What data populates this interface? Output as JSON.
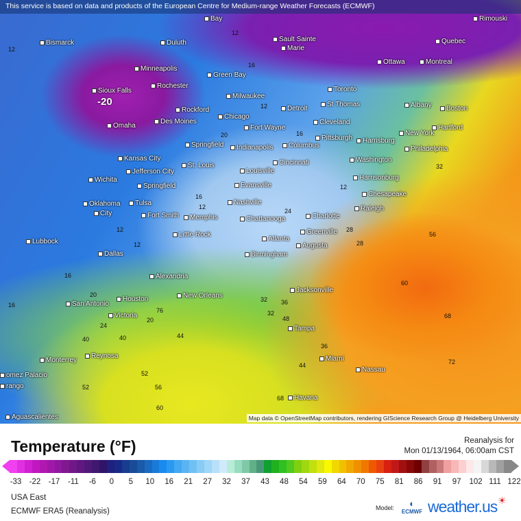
{
  "banner": "This service is based on data and products of the European Centre for Medium-range Weather Forecasts (ECMWF)",
  "map": {
    "cities": [
      "Bay",
      "Rimouski",
      "Bismarck",
      "Duluth",
      "Sault Sainte",
      "Marie",
      "Quebec",
      "Ottawa",
      "Montreal",
      "Minneapolis",
      "Rochester",
      "Green Bay",
      "Sioux Falls",
      "Milwaukee",
      "Toronto",
      "St Thomas",
      "Albany",
      "Boston",
      "Detroit",
      "Omaha",
      "Des Moines",
      "Rockford",
      "Chicago",
      "Fort Wayne",
      "Cleveland",
      "New York",
      "Hartford",
      "Springfield",
      "Indianapolis",
      "Columbus",
      "Pittsburgh",
      "Harrisburg",
      "Philadelphia",
      "Kansas City",
      "Jefferson City",
      "St. Louis",
      "Cincinnati",
      "Washington",
      "Wichita",
      "Springfield",
      "Louisville",
      "Evansville",
      "Harrisonburg",
      "Chesapeake",
      "Oklahoma",
      "City",
      "Tulsa",
      "Nashville",
      "Raleigh",
      "Fort Smith",
      "Memphis",
      "Chattanooga",
      "Charlotte",
      "Little Rock",
      "Greenville",
      "Lubbock",
      "Atlanta",
      "Augusta",
      "Dallas",
      "Birmingham",
      "Alexandria",
      "Jacksonville",
      "New Orleans",
      "Houston",
      "San Antonio",
      "Victoria",
      "Tampa",
      "Reynosa",
      "Monterrey",
      "Miami",
      "Nassau",
      "omez Palacio",
      "rango",
      "Havana",
      "Aguascalientes"
    ],
    "min_label": "-20",
    "contours": [
      "12",
      "12",
      "16",
      "12",
      "12",
      "16",
      "20",
      "16",
      "12",
      "16",
      "20",
      "24",
      "28",
      "16",
      "12",
      "20",
      "24",
      "32",
      "36",
      "40",
      "44",
      "32",
      "36",
      "48",
      "52",
      "44",
      "56",
      "60",
      "52",
      "56",
      "60",
      "68",
      "68",
      "72",
      "76",
      "32",
      "40",
      "28",
      "12"
    ],
    "attribution": "Map data © OpenStreetMap contributors, rendering GIScience Research Group @ Heidelberg University"
  },
  "legend": {
    "title": "Temperature (°F)",
    "reanalysis_label": "Reanalysis for",
    "valid_time": "Mon 01/13/1964, 06:00am CST",
    "ticks": [
      "-33",
      "-22",
      "-17",
      "-11",
      "-6",
      "0",
      "5",
      "10",
      "16",
      "21",
      "27",
      "32",
      "37",
      "43",
      "48",
      "54",
      "59",
      "64",
      "70",
      "75",
      "81",
      "86",
      "91",
      "97",
      "102",
      "111",
      "122"
    ],
    "colors": [
      "#f040f0",
      "#e030e0",
      "#d020d0",
      "#c018c0",
      "#b018b0",
      "#a018a8",
      "#9018a0",
      "#801890",
      "#701888",
      "#601880",
      "#501878",
      "#401870",
      "#301468",
      "#202080",
      "#182a88",
      "#183c90",
      "#184c98",
      "#1a5aa8",
      "#1a6ac0",
      "#1a7ad8",
      "#1a8aee",
      "#2a9af0",
      "#44a8f2",
      "#5ab4f4",
      "#70c0f4",
      "#88ccf6",
      "#a0d6f8",
      "#b8e0fa",
      "#d0eafc",
      "#b8ecd8",
      "#98dcc0",
      "#80c8a8",
      "#60b088",
      "#489878",
      "#10a030",
      "#20b020",
      "#30c020",
      "#50c820",
      "#80d010",
      "#a0d810",
      "#c0e010",
      "#e0e810",
      "#f8f800",
      "#f0d800",
      "#f0c000",
      "#f0a800",
      "#f09000",
      "#f07800",
      "#f05800",
      "#e84010",
      "#d82010",
      "#c01818",
      "#a01010",
      "#880808",
      "#700000",
      "#904040",
      "#b06060",
      "#c87878",
      "#f0a0a0",
      "#f8b8b8",
      "#fcd0d0",
      "#fce8e8",
      "#f4f4f4",
      "#d8d8d8",
      "#b8b8b8",
      "#a0a0a0",
      "#888888"
    ],
    "region": "USA East",
    "model_name": "ECMWF ERA5 (Reanalysis)",
    "model_label": "Model:",
    "ecmwf_logo": "ECMWF",
    "brand": "weather.us"
  }
}
